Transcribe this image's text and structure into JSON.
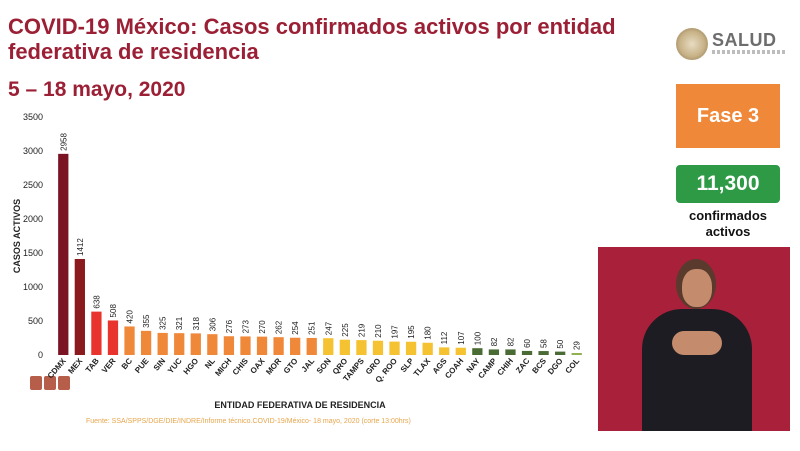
{
  "header": {
    "title": "COVID-19 México: Casos confirmados activos por entidad federativa de residencia",
    "period": "5 – 18 mayo, 2020"
  },
  "logo": {
    "text": "SALUD"
  },
  "phase": {
    "label": "Fase 3"
  },
  "total": {
    "value": "11,300",
    "label": "confirmados activos"
  },
  "source": "Fuente: SSA/SPPS/DGE/DIE/INDRE/Informe técnico.COVID-19/México- 18 mayo, 2020 (corte 13:00hrs)",
  "chart_data": {
    "type": "bar",
    "xlabel": "ENTIDAD FEDERATIVA DE  RESIDENCIA",
    "ylabel": "CASOS ACTIVOS",
    "ylim": [
      0,
      3500
    ],
    "yticks": [
      0,
      500,
      1000,
      1500,
      2000,
      2500,
      3000,
      3500
    ],
    "categories": [
      "CDMX",
      "MEX",
      "TAB",
      "VER",
      "BC",
      "PUE",
      "SIN",
      "YUC",
      "HGO",
      "NL",
      "MICH",
      "CHIS",
      "OAX",
      "MOR",
      "GTO",
      "JAL",
      "SON",
      "QRO",
      "TAMPS",
      "GRO",
      "Q. ROO",
      "SLP",
      "TLAX",
      "AGS",
      "COAH",
      "NAY",
      "CAMP",
      "CHIH",
      "ZAC",
      "BCS",
      "DGO",
      "COL"
    ],
    "values": [
      2958,
      1412,
      638,
      508,
      420,
      355,
      325,
      321,
      318,
      306,
      276,
      273,
      270,
      262,
      254,
      251,
      247,
      225,
      219,
      210,
      197,
      195,
      180,
      112,
      107,
      100,
      82,
      82,
      60,
      58,
      50,
      29
    ],
    "colors": [
      "#7a1422",
      "#8b1a1e",
      "#e8342c",
      "#e8342c",
      "#f0883a",
      "#f0883a",
      "#f0883a",
      "#f0883a",
      "#f0883a",
      "#f0883a",
      "#f0883a",
      "#f0883a",
      "#f0883a",
      "#f0883a",
      "#f0883a",
      "#f0883a",
      "#f5c232",
      "#f5c232",
      "#f5c232",
      "#f5c232",
      "#f5c232",
      "#f5c232",
      "#f5c232",
      "#f5c232",
      "#f5c232",
      "#4a6b34",
      "#4a6b34",
      "#4a6b34",
      "#4a6b34",
      "#4a6b34",
      "#4a6b34",
      "#8fb04e"
    ]
  }
}
